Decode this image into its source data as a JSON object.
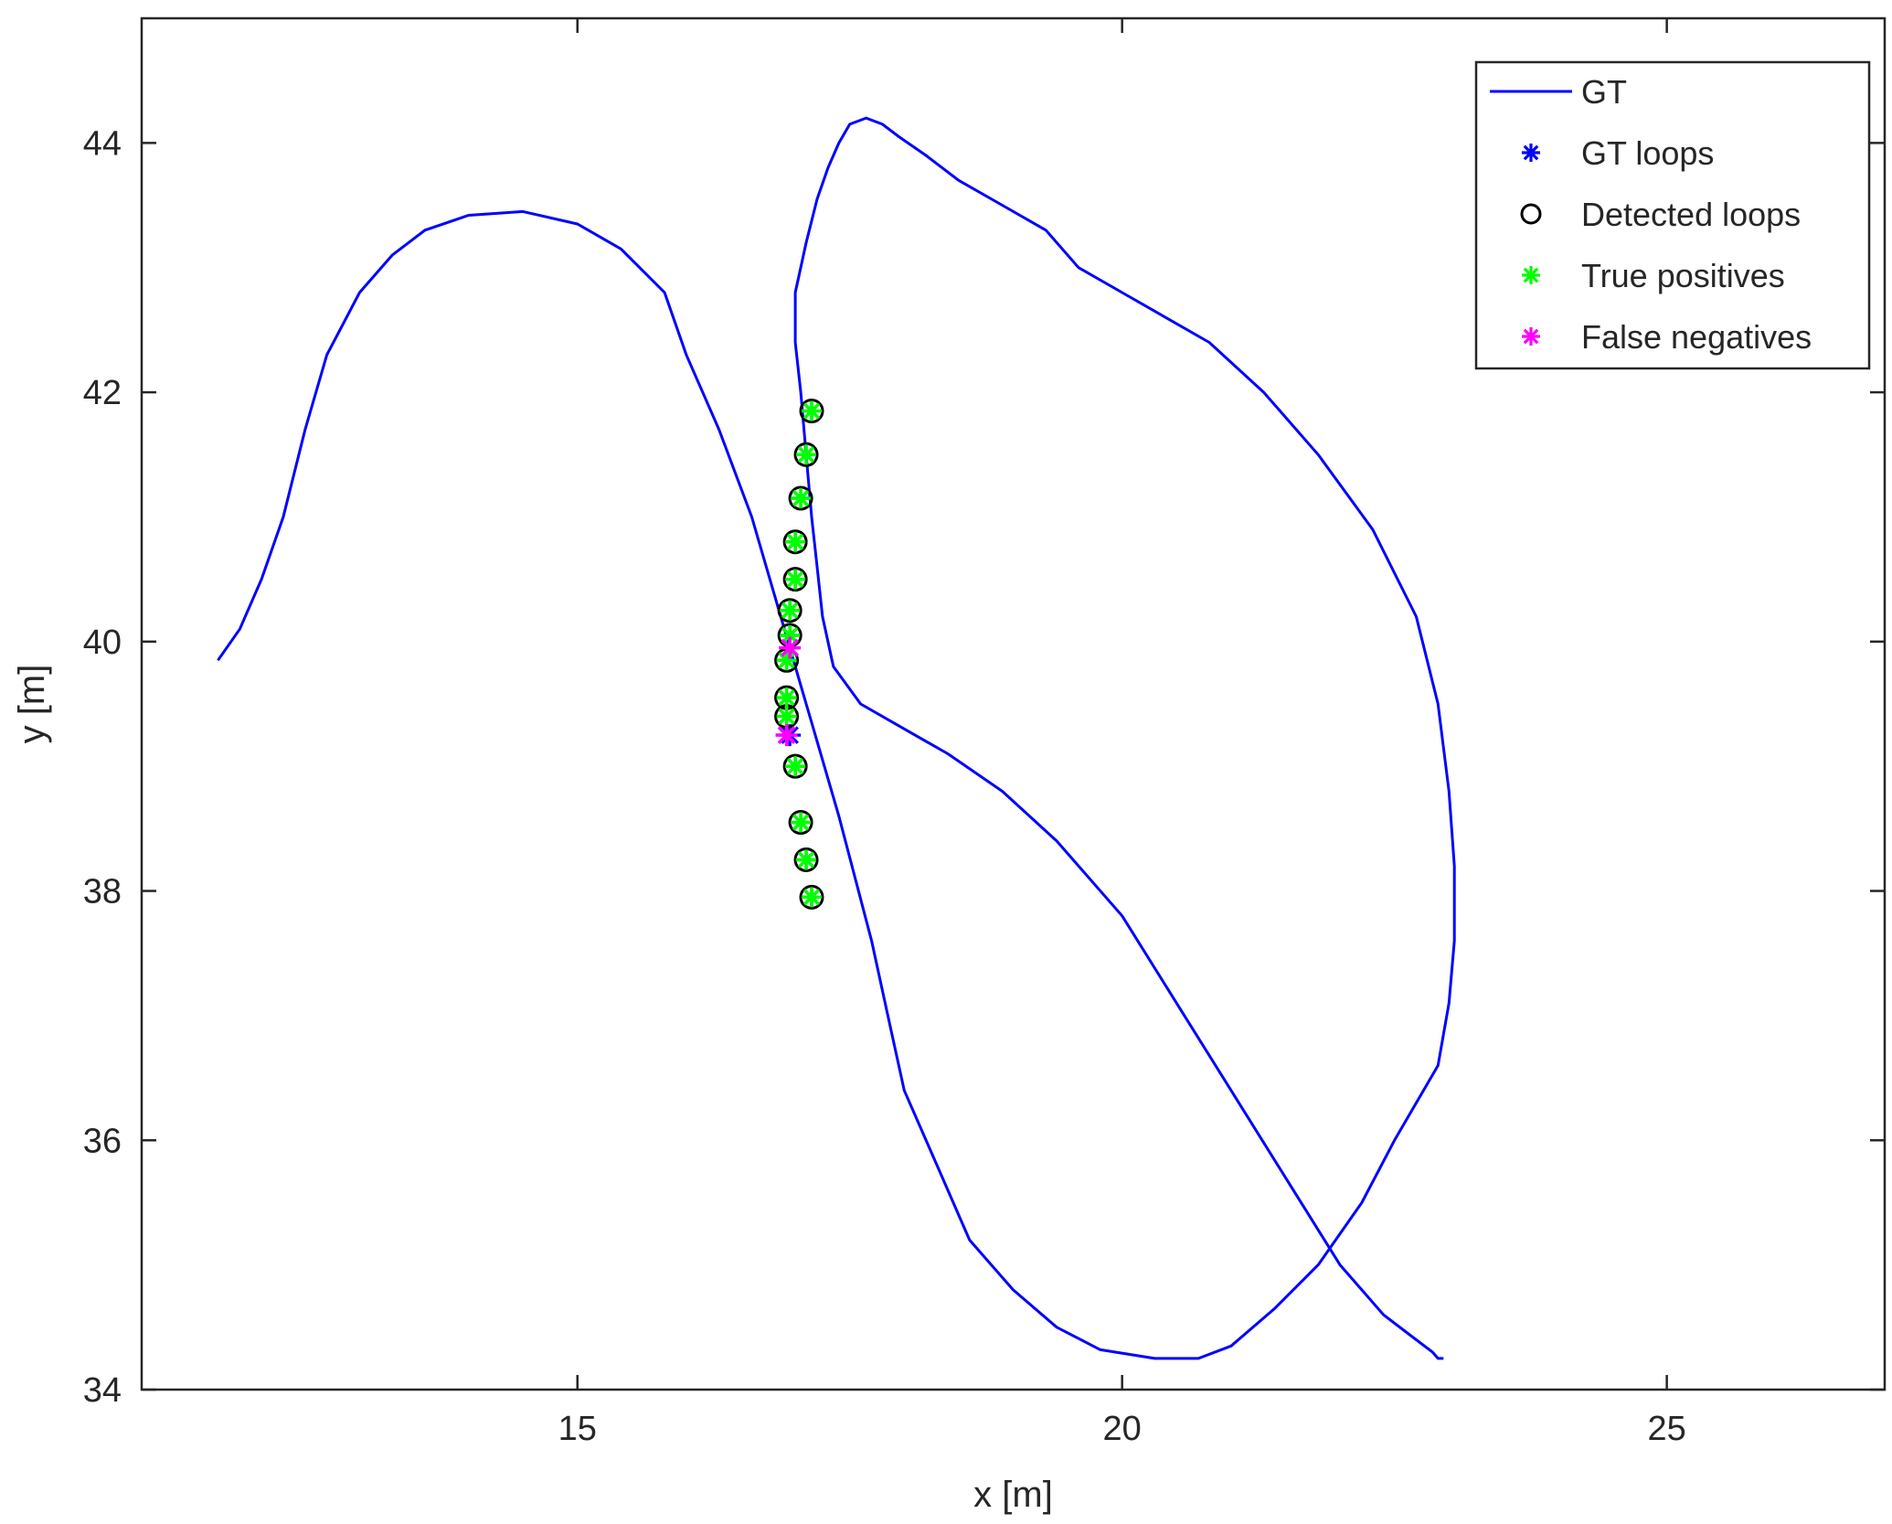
{
  "chart_data": {
    "type": "line",
    "title": "",
    "xlabel": "x [m]",
    "ylabel": "y [m]",
    "xlim": [
      11,
      27
    ],
    "ylim": [
      34,
      45
    ],
    "xticks": [
      15,
      20,
      25
    ],
    "yticks": [
      34,
      36,
      38,
      40,
      42,
      44
    ],
    "xtick_labels": [
      "15",
      "20",
      "25"
    ],
    "ytick_labels": [
      "34",
      "36",
      "38",
      "40",
      "42",
      "44"
    ],
    "grid": false,
    "legend_position": "top-right",
    "colors": {
      "gt": "#0000ff",
      "gt_loops": "#0000ff",
      "detected_loops": "#000000",
      "true_positives": "#00ff00",
      "false_negatives": "#ff00ff",
      "axes": "#262626"
    },
    "series": [
      {
        "name": "GT",
        "type": "line",
        "x": [
          11.7,
          11.9,
          12.1,
          12.3,
          12.5,
          12.7,
          13.0,
          13.3,
          13.6,
          14.0,
          14.5,
          15.0,
          15.4,
          15.8,
          16.0,
          16.3,
          16.6,
          16.8,
          17.0,
          17.2,
          17.4,
          17.55,
          17.7,
          17.85,
          18.0,
          18.3,
          18.6,
          19.0,
          19.4,
          19.8,
          20.3,
          20.7,
          21.0,
          21.4,
          21.8,
          22.2,
          22.5,
          22.7,
          22.9,
          23.0,
          23.05,
          23.05,
          23.0,
          22.9,
          22.7,
          22.3,
          21.8,
          21.3,
          20.8,
          20.4,
          20.0,
          19.6,
          19.3,
          18.9,
          18.5,
          18.2,
          17.95,
          17.8,
          17.65,
          17.5,
          17.4,
          17.3,
          17.2,
          17.1,
          17.0,
          17.0,
          17.05,
          17.1,
          17.15,
          17.2,
          17.25,
          17.35,
          17.6,
          18.0,
          18.4,
          18.9,
          19.4,
          20.0,
          20.5,
          21.0,
          21.5,
          22.0,
          22.4,
          22.7,
          22.85,
          22.9,
          22.95
        ],
        "y": [
          39.85,
          40.1,
          40.5,
          41.0,
          41.7,
          42.3,
          42.8,
          43.1,
          43.3,
          43.42,
          43.45,
          43.35,
          43.15,
          42.8,
          42.3,
          41.7,
          41.0,
          40.4,
          39.8,
          39.2,
          38.6,
          38.1,
          37.6,
          37.0,
          36.4,
          35.8,
          35.2,
          34.8,
          34.5,
          34.32,
          34.25,
          34.25,
          34.35,
          34.65,
          35.0,
          35.5,
          36.0,
          36.3,
          36.6,
          37.1,
          37.6,
          38.2,
          38.8,
          39.5,
          40.2,
          40.9,
          41.5,
          42.0,
          42.4,
          42.6,
          42.8,
          43.0,
          43.3,
          43.5,
          43.7,
          43.9,
          44.05,
          44.15,
          44.2,
          44.15,
          44.0,
          43.8,
          43.55,
          43.2,
          42.8,
          42.4,
          42.0,
          41.5,
          41.0,
          40.6,
          40.2,
          39.8,
          39.5,
          39.3,
          39.1,
          38.8,
          38.4,
          37.8,
          37.1,
          36.4,
          35.7,
          35.0,
          34.6,
          34.4,
          34.3,
          34.25,
          34.25
        ]
      },
      {
        "name": "GT loops",
        "type": "scatter",
        "marker": "*",
        "x": [
          17.15,
          17.1,
          17.05,
          17.0,
          17.0,
          16.95,
          16.95,
          16.92,
          16.92,
          16.95,
          17.0,
          17.05,
          17.1,
          17.15
        ],
        "y": [
          41.85,
          41.5,
          41.15,
          40.8,
          40.5,
          40.25,
          40.05,
          39.85,
          39.55,
          39.25,
          39.0,
          38.55,
          38.25,
          37.95
        ]
      },
      {
        "name": "Detected loops",
        "type": "scatter",
        "marker": "o",
        "x": [
          17.15,
          17.1,
          17.05,
          17.0,
          17.0,
          16.95,
          16.95,
          16.92,
          16.92,
          16.92,
          17.0,
          17.05,
          17.1,
          17.15
        ],
        "y": [
          41.85,
          41.5,
          41.15,
          40.8,
          40.5,
          40.25,
          40.05,
          39.85,
          39.55,
          39.4,
          39.0,
          38.55,
          38.25,
          37.95
        ]
      },
      {
        "name": "True positives",
        "type": "scatter",
        "marker": "*",
        "x": [
          17.15,
          17.1,
          17.05,
          17.0,
          17.0,
          16.95,
          16.95,
          16.92,
          16.92,
          16.92,
          17.0,
          17.05,
          17.1,
          17.15
        ],
        "y": [
          41.85,
          41.5,
          41.15,
          40.8,
          40.5,
          40.25,
          40.05,
          39.85,
          39.55,
          39.4,
          39.0,
          38.55,
          38.25,
          37.95
        ]
      },
      {
        "name": "False negatives",
        "type": "scatter",
        "marker": "*",
        "x": [
          16.95,
          16.92
        ],
        "y": [
          39.95,
          39.25
        ]
      }
    ]
  }
}
